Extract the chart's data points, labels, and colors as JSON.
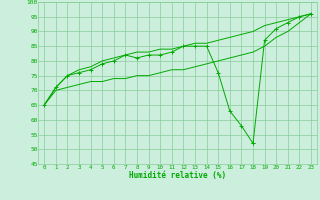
{
  "title": "",
  "xlabel": "Humidité relative (%)",
  "ylabel": "",
  "bg_color": "#cceedd",
  "grid_color": "#88cc99",
  "line_color": "#00aa00",
  "xlim": [
    -0.5,
    23.5
  ],
  "ylim": [
    45,
    100
  ],
  "xticks": [
    0,
    1,
    2,
    3,
    4,
    5,
    6,
    7,
    8,
    9,
    10,
    11,
    12,
    13,
    14,
    15,
    16,
    17,
    18,
    19,
    20,
    21,
    22,
    23
  ],
  "yticks": [
    45,
    50,
    55,
    60,
    65,
    70,
    75,
    80,
    85,
    90,
    95,
    100
  ],
  "line_marker": [
    65,
    71,
    75,
    76,
    77,
    79,
    80,
    82,
    81,
    82,
    82,
    83,
    85,
    85,
    85,
    76,
    63,
    58,
    52,
    null,
    null,
    null,
    null,
    null
  ],
  "line_marker2": [
    null,
    null,
    null,
    null,
    null,
    null,
    null,
    null,
    null,
    null,
    null,
    null,
    null,
    null,
    null,
    null,
    null,
    null,
    52,
    87,
    91,
    93,
    95,
    96
  ],
  "line_upper": [
    65,
    71,
    75,
    77,
    78,
    80,
    81,
    82,
    83,
    83,
    84,
    84,
    85,
    86,
    86,
    87,
    88,
    89,
    90,
    92,
    93,
    94,
    95,
    96
  ],
  "line_lower": [
    65,
    70,
    71,
    72,
    73,
    73,
    74,
    74,
    75,
    75,
    76,
    77,
    77,
    78,
    79,
    80,
    81,
    82,
    83,
    85,
    88,
    90,
    93,
    96
  ]
}
